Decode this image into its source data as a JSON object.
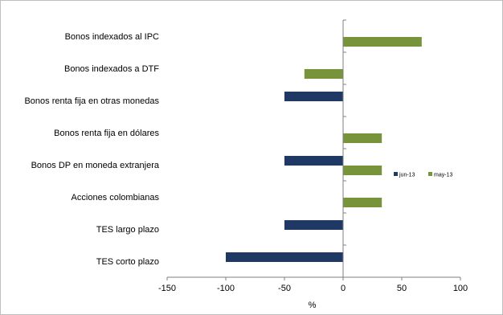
{
  "chart_data": {
    "type": "bar",
    "orientation": "horizontal",
    "categories": [
      "Bonos indexados al IPC",
      "Bonos indexados a DTF",
      "Bonos renta fija en otras monedas",
      "Bonos renta fija en dólares",
      "Bonos DP en moneda extranjera",
      "Acciones colombianas",
      "TES largo plazo",
      "TES corto plazo"
    ],
    "series": [
      {
        "name": "jun-13",
        "color": "#1f3864",
        "values": [
          0,
          0,
          -50,
          0,
          -50,
          0,
          -50,
          -100
        ]
      },
      {
        "name": "may-13",
        "color": "#77933c",
        "values": [
          67,
          -33,
          0,
          33,
          33,
          33,
          0,
          0
        ]
      }
    ],
    "xlabel": "%",
    "xlim": [
      -150,
      100
    ],
    "xticks": [
      "-150",
      "-100",
      "-50",
      "0",
      "50",
      "100"
    ],
    "grid": false,
    "legend": "right"
  }
}
